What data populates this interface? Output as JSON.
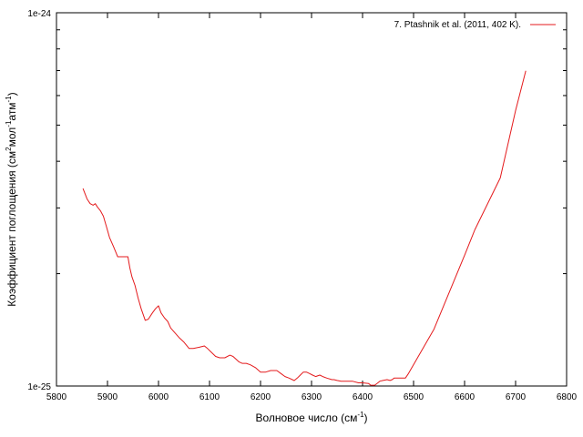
{
  "chart_data": {
    "type": "line",
    "xlabel": {
      "base": "Волновое число (см",
      "sup": "-1",
      "tail": ")"
    },
    "ylabel": {
      "p1": "Коэффициент поглощения (см",
      "s1": "2",
      "p2": "мол",
      "s2": "-1",
      "p3": "атм",
      "s3": "-1",
      "p4": ")"
    },
    "xlim": [
      5800,
      6800
    ],
    "ylim": [
      1e-25,
      1e-24
    ],
    "yscale": "log",
    "xticks": [
      5800,
      5900,
      6000,
      6100,
      6200,
      6300,
      6400,
      6500,
      6600,
      6700,
      6800
    ],
    "xtick_labels": [
      "5800",
      "5900",
      "6000",
      "6100",
      "6200",
      "6300",
      "6400",
      "6500",
      "6600",
      "6700",
      "6800"
    ],
    "yticks": [
      1e-25,
      1e-24
    ],
    "ytick_labels": [
      "1e-25",
      "1e-24"
    ],
    "grid": false,
    "legend_position": "top-right",
    "series": [
      {
        "name": "7. Ptashnik et al. (2011, 402 K).",
        "color": "#e41a1c",
        "x": [
          5852,
          5860,
          5866,
          5872,
          5876,
          5880,
          5886,
          5892,
          5898,
          5904,
          5912,
          5920,
          5930,
          5940,
          5944,
          5948,
          5954,
          5960,
          5966,
          5974,
          5980,
          5988,
          5994,
          6000,
          6005,
          6012,
          6018,
          6024,
          6032,
          6040,
          6050,
          6060,
          6068,
          6080,
          6090,
          6096,
          6104,
          6112,
          6120,
          6130,
          6140,
          6146,
          6152,
          6158,
          6164,
          6172,
          6180,
          6190,
          6200,
          6210,
          6220,
          6232,
          6240,
          6248,
          6256,
          6266,
          6272,
          6278,
          6284,
          6290,
          6296,
          6302,
          6308,
          6316,
          6322,
          6330,
          6340,
          6344,
          6350,
          6358,
          6364,
          6372,
          6380,
          6392,
          6400,
          6412,
          6416,
          6424,
          6430,
          6434,
          6440,
          6448,
          6454,
          6458,
          6462,
          6468,
          6472,
          6476,
          6484,
          6490,
          6540,
          6600,
          6620,
          6670,
          6700,
          6720
        ],
        "y": [
          3.38e-25,
          3.17e-25,
          3.08e-25,
          3.05e-25,
          3.08e-25,
          3.02e-25,
          2.95e-25,
          2.85e-25,
          2.67e-25,
          2.5e-25,
          2.36e-25,
          2.22e-25,
          2.22e-25,
          2.22e-25,
          2.07e-25,
          1.96e-25,
          1.86e-25,
          1.72e-25,
          1.61e-25,
          1.5e-25,
          1.51e-25,
          1.57e-25,
          1.61e-25,
          1.64e-25,
          1.57e-25,
          1.52e-25,
          1.49e-25,
          1.43e-25,
          1.39e-25,
          1.35e-25,
          1.31e-25,
          1.26e-25,
          1.26e-25,
          1.27e-25,
          1.28e-25,
          1.26e-25,
          1.23e-25,
          1.2e-25,
          1.19e-25,
          1.19e-25,
          1.21e-25,
          1.2e-25,
          1.18e-25,
          1.16e-25,
          1.15e-25,
          1.15e-25,
          1.14e-25,
          1.12e-25,
          1.09e-25,
          1.09e-25,
          1.1e-25,
          1.1e-25,
          1.08e-25,
          1.06e-25,
          1.05e-25,
          1.034e-25,
          1.05e-25,
          1.07e-25,
          1.09e-25,
          1.09e-25,
          1.08e-25,
          1.07e-25,
          1.06e-25,
          1.07e-25,
          1.06e-25,
          1.05e-25,
          1.04e-25,
          1.04e-25,
          1.035e-25,
          1.03e-25,
          1.03e-25,
          1.03e-25,
          1.03e-25,
          1.02e-25,
          1.02e-25,
          1.015e-25,
          1.005e-25,
          1.005e-25,
          1.02e-25,
          1.03e-25,
          1.035e-25,
          1.04e-25,
          1.035e-25,
          1.04e-25,
          1.05e-25,
          1.05e-25,
          1.05e-25,
          1.05e-25,
          1.05e-25,
          1.08e-25,
          1.42e-25,
          2.24e-25,
          2.62e-25,
          3.61e-25,
          5.47e-25,
          6.99e-25
        ]
      }
    ]
  }
}
